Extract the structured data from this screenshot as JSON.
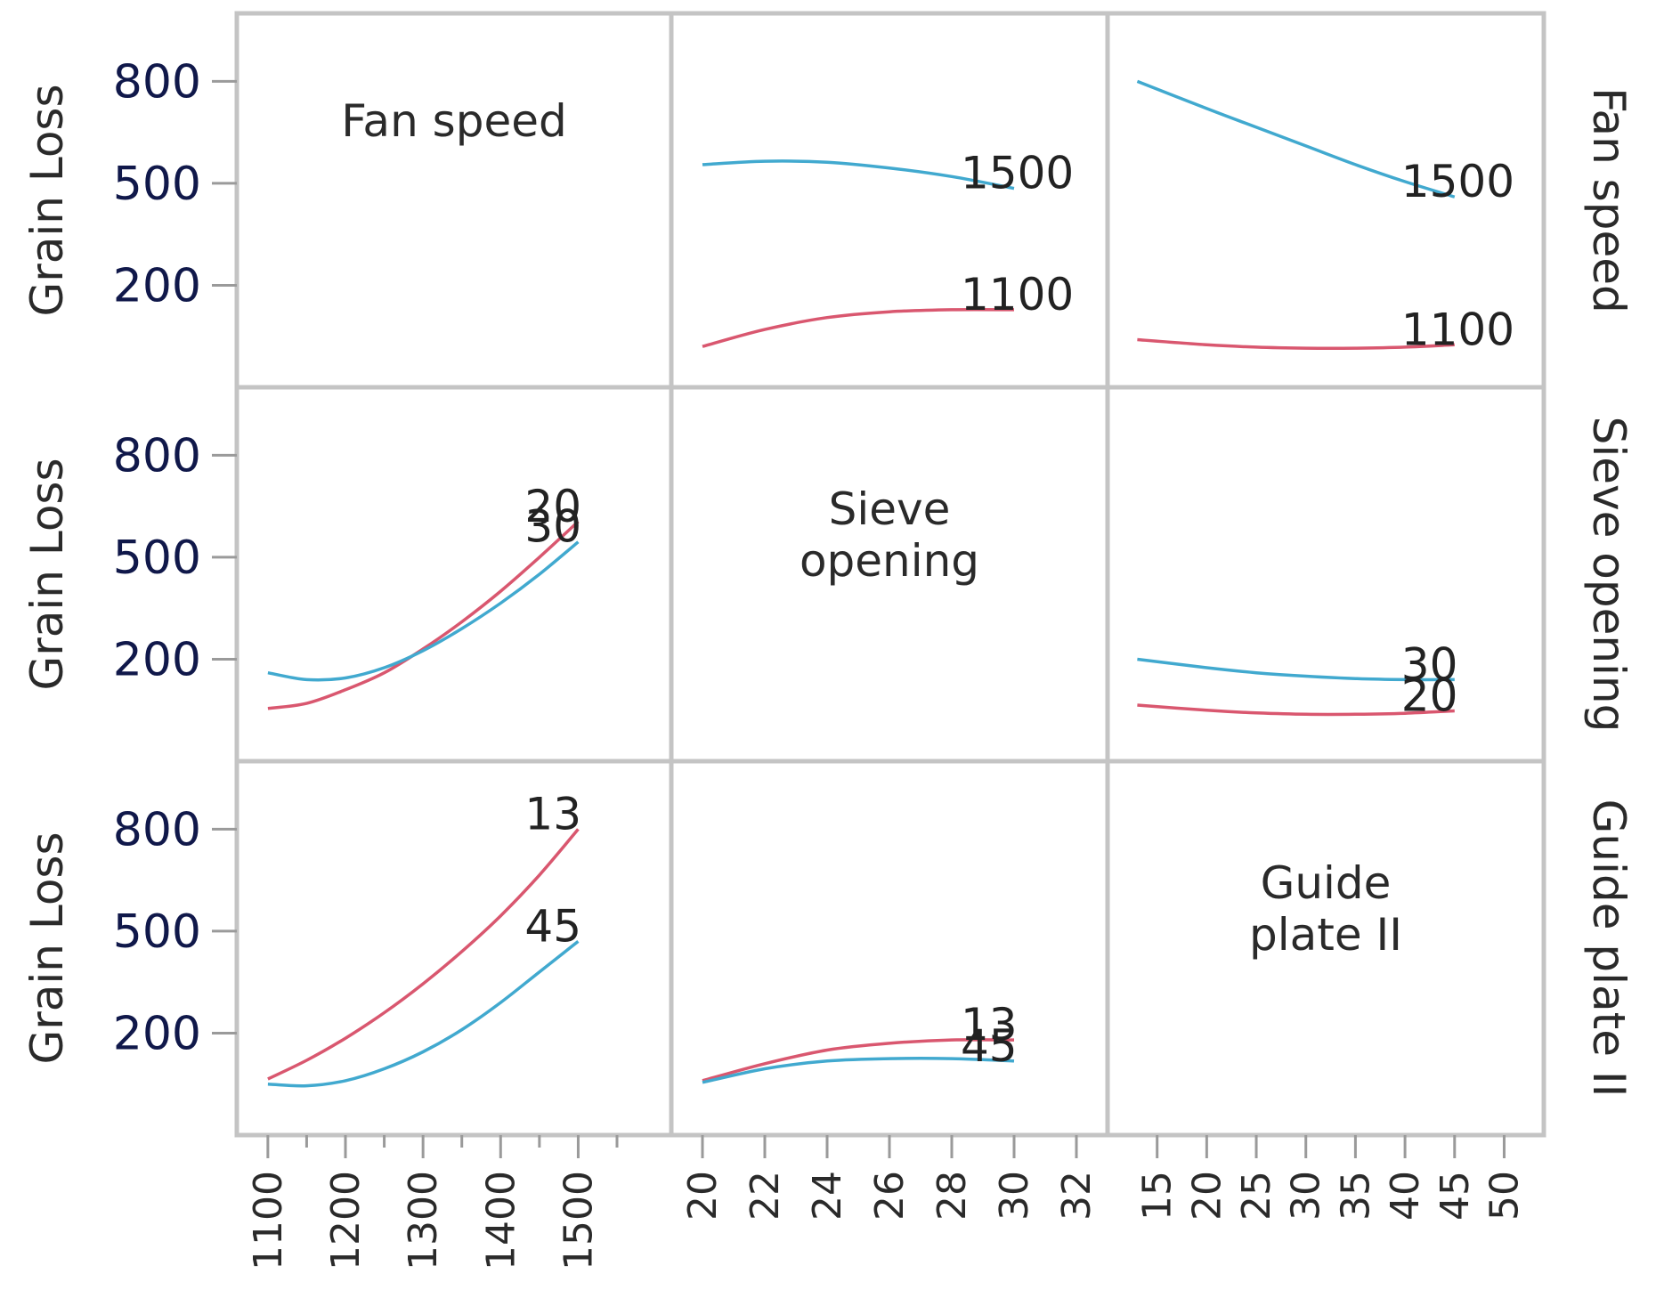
{
  "chart_data": {
    "type": "line",
    "title": "",
    "response": "Grain Loss",
    "ylabel": "Grain Loss",
    "ylim": [
      -100,
      1000
    ],
    "yticks": [
      200,
      500,
      800
    ],
    "colors": {
      "low": "#d9576f",
      "high": "#41a9cf",
      "axis_text": "#10184a"
    },
    "factors": [
      {
        "name": "Fan speed",
        "display": [
          "Fan speed"
        ],
        "xlim": [
          1060,
          1620
        ],
        "ticks": [
          1100,
          1200,
          1300,
          1400,
          1500
        ],
        "minor_ticks": [
          1150,
          1250,
          1350,
          1450,
          1550
        ]
      },
      {
        "name": "Sieve opening",
        "display": [
          "Sieve",
          "opening"
        ],
        "xlim": [
          19,
          33
        ],
        "ticks": [
          20,
          22,
          24,
          26,
          28,
          30,
          32
        ],
        "minor_ticks": []
      },
      {
        "name": "Guide plate II",
        "display": [
          "Guide",
          "plate II"
        ],
        "xlim": [
          10,
          54
        ],
        "ticks": [
          15,
          20,
          25,
          30,
          35,
          40,
          45,
          50
        ],
        "minor_ticks": []
      }
    ],
    "panels": [
      {
        "row": 0,
        "col": 1,
        "x_factor": "Sieve opening",
        "trace_factor": "Fan speed",
        "series": [
          {
            "name": "1500",
            "level": "high",
            "x": [
              20,
              22,
              24,
              26,
              28,
              30
            ],
            "values": [
              555,
              565,
              562,
              545,
              520,
              485
            ]
          },
          {
            "name": "1100",
            "level": "low",
            "x": [
              20,
              22,
              24,
              26,
              28,
              30
            ],
            "values": [
              20,
              70,
              105,
              122,
              128,
              128
            ]
          }
        ]
      },
      {
        "row": 0,
        "col": 2,
        "x_factor": "Guide plate II",
        "trace_factor": "Fan speed",
        "series": [
          {
            "name": "1500",
            "level": "high",
            "x": [
              13,
              20,
              25,
              30,
              35,
              40,
              45
            ],
            "values": [
              800,
              720,
              665,
              610,
              555,
              505,
              460
            ]
          },
          {
            "name": "1100",
            "level": "low",
            "x": [
              13,
              20,
              25,
              30,
              35,
              40,
              45
            ],
            "values": [
              40,
              25,
              18,
              15,
              15,
              18,
              25
            ]
          }
        ]
      },
      {
        "row": 1,
        "col": 0,
        "x_factor": "Fan speed",
        "trace_factor": "Sieve opening",
        "series": [
          {
            "name": "20",
            "level": "low",
            "x": [
              1100,
              1150,
              1200,
              1250,
              1300,
              1350,
              1400,
              1450,
              1500
            ],
            "values": [
              55,
              70,
              110,
              160,
              230,
              310,
              400,
              500,
              605
            ]
          },
          {
            "name": "30",
            "level": "high",
            "x": [
              1100,
              1150,
              1200,
              1250,
              1300,
              1350,
              1400,
              1450,
              1500
            ],
            "values": [
              160,
              140,
              145,
              175,
              225,
              290,
              365,
              450,
              545
            ]
          }
        ]
      },
      {
        "row": 1,
        "col": 2,
        "x_factor": "Guide plate II",
        "trace_factor": "Sieve opening",
        "series": [
          {
            "name": "30",
            "level": "high",
            "x": [
              13,
              20,
              25,
              30,
              35,
              40,
              45
            ],
            "values": [
              200,
              175,
              160,
              150,
              143,
              140,
              140
            ]
          },
          {
            "name": "20",
            "level": "low",
            "x": [
              13,
              20,
              25,
              30,
              35,
              40,
              45
            ],
            "values": [
              65,
              50,
              42,
              38,
              38,
              41,
              48
            ]
          }
        ]
      },
      {
        "row": 2,
        "col": 0,
        "x_factor": "Fan speed",
        "trace_factor": "Guide plate II",
        "series": [
          {
            "name": "13",
            "level": "low",
            "x": [
              1100,
              1150,
              1200,
              1250,
              1300,
              1350,
              1400,
              1450,
              1500
            ],
            "values": [
              65,
              120,
              185,
              260,
              345,
              440,
              545,
              665,
              800
            ]
          },
          {
            "name": "45",
            "level": "high",
            "x": [
              1100,
              1150,
              1200,
              1250,
              1300,
              1350,
              1400,
              1450,
              1500
            ],
            "values": [
              50,
              45,
              60,
              95,
              145,
              210,
              290,
              380,
              470
            ]
          }
        ]
      },
      {
        "row": 2,
        "col": 1,
        "x_factor": "Sieve opening",
        "trace_factor": "Guide plate II",
        "series": [
          {
            "name": "13",
            "level": "low",
            "x": [
              20,
              22,
              24,
              26,
              28,
              30
            ],
            "values": [
              60,
              110,
              150,
              170,
              180,
              180
            ]
          },
          {
            "name": "45",
            "level": "high",
            "x": [
              20,
              22,
              24,
              26,
              28,
              30
            ],
            "values": [
              55,
              95,
              118,
              125,
              125,
              118
            ]
          }
        ]
      }
    ]
  }
}
